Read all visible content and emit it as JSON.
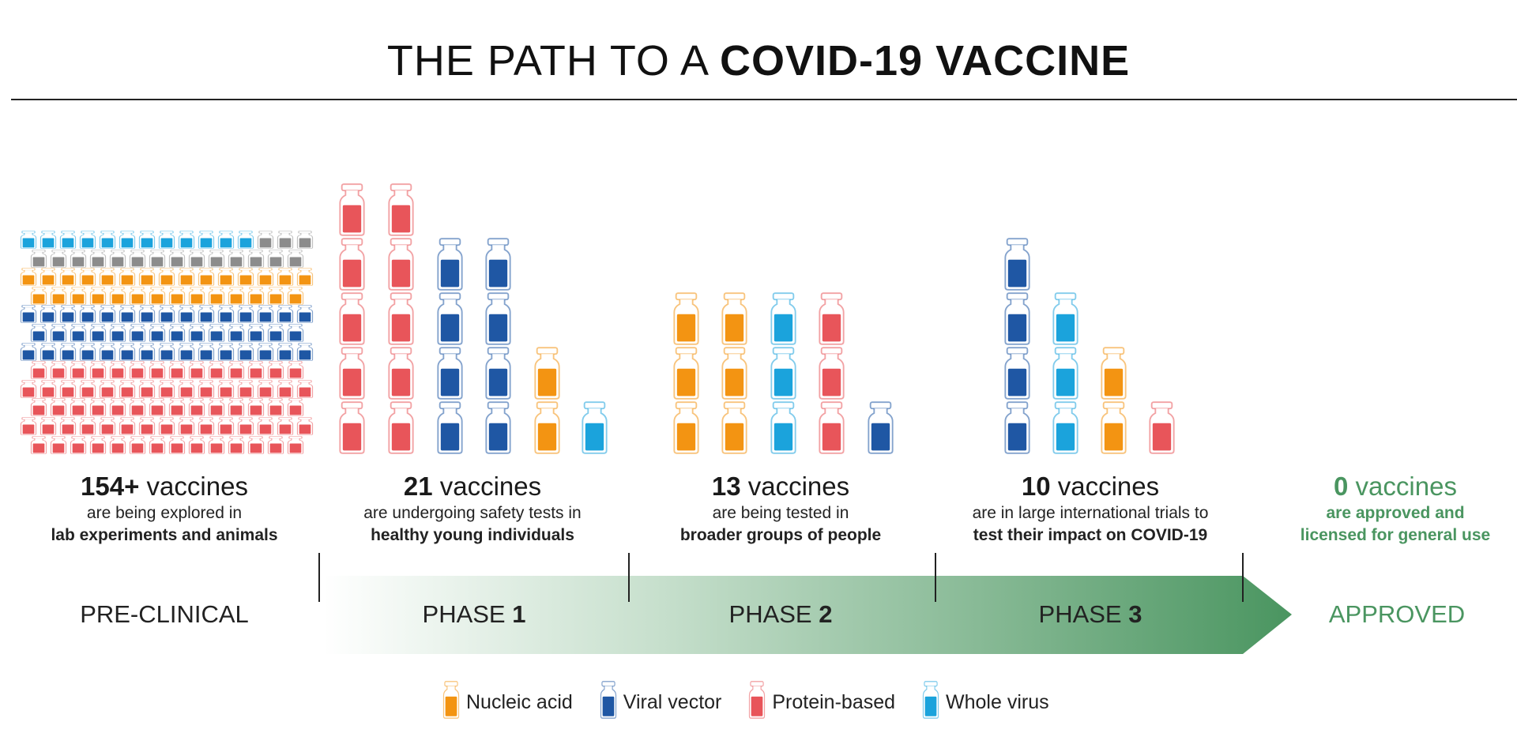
{
  "title": {
    "light": "THE PATH TO A ",
    "bold": "COVID-19 VACCINE"
  },
  "colors": {
    "nucleic_acid": "#f39412",
    "viral_vector": "#1f57a4",
    "protein_based": "#e8555a",
    "whole_virus": "#1ba3dc",
    "other": "#8c8c8c",
    "green": "#4a9560"
  },
  "preclinical_grid": [
    {
      "types": [
        [
          "whole_virus",
          12
        ],
        [
          "other",
          3
        ]
      ]
    },
    {
      "types": [
        [
          "other",
          14
        ]
      ]
    },
    {
      "types": [
        [
          "nucleic_acid",
          15
        ]
      ]
    },
    {
      "types": [
        [
          "nucleic_acid",
          14
        ]
      ]
    },
    {
      "types": [
        [
          "viral_vector",
          15
        ]
      ]
    },
    {
      "types": [
        [
          "viral_vector",
          14
        ]
      ]
    },
    {
      "types": [
        [
          "viral_vector",
          15
        ]
      ]
    },
    {
      "types": [
        [
          "protein_based",
          14
        ]
      ]
    },
    {
      "types": [
        [
          "protein_based",
          15
        ]
      ]
    },
    {
      "types": [
        [
          "protein_based",
          14
        ]
      ]
    },
    {
      "types": [
        [
          "protein_based",
          15
        ]
      ]
    },
    {
      "types": [
        [
          "protein_based",
          14
        ]
      ]
    }
  ],
  "phase_stacks": {
    "phase1": [
      [
        "protein_based",
        5
      ],
      [
        "protein_based",
        5
      ],
      [
        "viral_vector",
        4
      ],
      [
        "viral_vector",
        4
      ],
      [
        "nucleic_acid",
        2
      ],
      [
        "whole_virus",
        1
      ]
    ],
    "phase2": [
      [
        "nucleic_acid",
        3
      ],
      [
        "nucleic_acid",
        3
      ],
      [
        "whole_virus",
        3
      ],
      [
        "protein_based",
        3
      ],
      [
        "viral_vector",
        1
      ]
    ],
    "phase3": [
      [
        "viral_vector",
        4
      ],
      [
        "whole_virus",
        3
      ],
      [
        "nucleic_acid",
        2
      ],
      [
        "protein_based",
        1
      ]
    ]
  },
  "stats": {
    "preclinical": {
      "count": "154+",
      "unit": " vaccines",
      "line1": "are being explored in",
      "line2": "lab experiments and animals"
    },
    "phase1": {
      "count": "21",
      "unit": " vaccines",
      "line1": "are undergoing safety tests in",
      "line2": "healthy young individuals"
    },
    "phase2": {
      "count": "13",
      "unit": " vaccines",
      "line1": "are being tested in",
      "line2": "broader groups of people"
    },
    "phase3": {
      "count": "10",
      "unit": " vaccines",
      "line1": "are in large international trials to",
      "line2": "test their impact on COVID-19"
    },
    "approved": {
      "count": "0",
      "unit": " vaccines",
      "line1": "are approved and",
      "line2": "licensed for general use"
    }
  },
  "phases": {
    "preclinical": "PRE-CLINICAL",
    "phase1": {
      "word": "PHASE ",
      "num": "1"
    },
    "phase2": {
      "word": "PHASE ",
      "num": "2"
    },
    "phase3": {
      "word": "PHASE ",
      "num": "3"
    },
    "approved": "APPROVED"
  },
  "legend": [
    {
      "type": "nucleic_acid",
      "label": "Nucleic acid"
    },
    {
      "type": "viral_vector",
      "label": "Viral vector"
    },
    {
      "type": "protein_based",
      "label": "Protein-based"
    },
    {
      "type": "whole_virus",
      "label": "Whole virus"
    }
  ]
}
